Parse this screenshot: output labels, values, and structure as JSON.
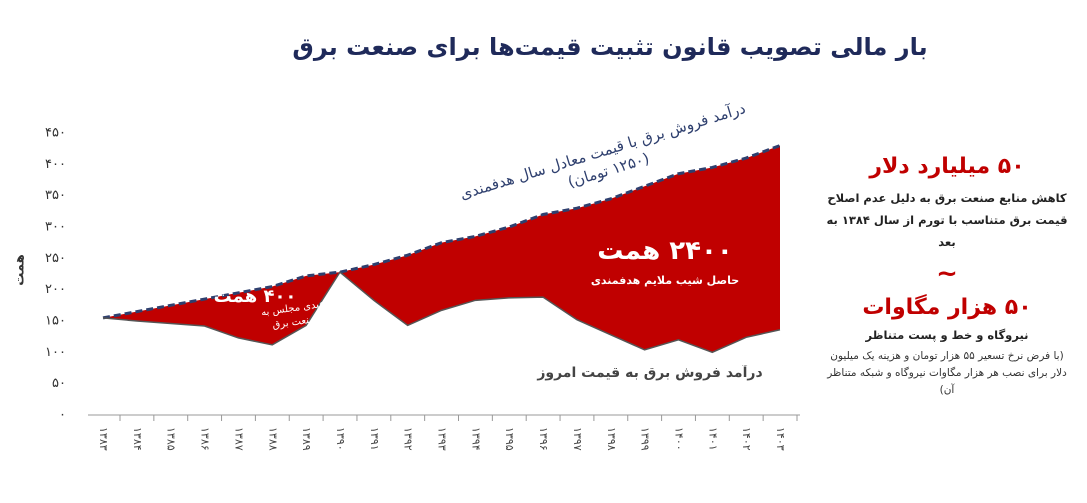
{
  "chart_data": {
    "type": "area_between",
    "title": "بار مالی تصویب قانون تثبیت قیمت‌ها برای صنعت برق",
    "y_label": "همت",
    "categories": [
      "۱۳۸۳",
      "۱۳۸۴",
      "۱۳۸۵",
      "۱۳۸۶",
      "۱۳۸۷",
      "۱۳۸۸",
      "۱۳۸۹",
      "۱۳۹۰",
      "۱۳۹۱",
      "۱۳۹۲",
      "۱۳۹۳",
      "۱۳۹۴",
      "۱۳۹۵",
      "۱۳۹۶",
      "۱۳۹۷",
      "۱۳۹۸",
      "۱۳۹۹",
      "۱۴۰۰",
      "۱۴۰۱",
      "۱۴۰۲",
      "۱۴۰۳"
    ],
    "series": [
      {
        "name": "درآمد فروش برق با قیمت معادل سال هدفمندی (۱۲۵۰ تومان)",
        "color": "#2e3f6e",
        "values": [
          155,
          165,
          175,
          185,
          195,
          205,
          222,
          228,
          240,
          255,
          275,
          285,
          300,
          320,
          330,
          345,
          365,
          385,
          395,
          410,
          430
        ]
      },
      {
        "name": "درآمد فروش برق به قیمت امروز",
        "color": "#555555",
        "values": [
          155,
          150,
          146,
          142,
          123,
          112,
          143,
          228,
          183,
          143,
          167,
          183,
          187,
          188,
          152,
          128,
          104,
          120,
          100,
          124,
          136
        ]
      }
    ],
    "fill_color": "#c00000",
    "ylim": [
      0,
      450
    ],
    "yticks": [
      {
        "value": 0,
        "label": "۰"
      },
      {
        "value": 50,
        "label": "۵۰"
      },
      {
        "value": 100,
        "label": "۱۰۰"
      },
      {
        "value": 150,
        "label": "۱۵۰"
      },
      {
        "value": 200,
        "label": "۲۰۰"
      },
      {
        "value": 250,
        "label": "۲۵۰"
      },
      {
        "value": 300,
        "label": "۳۰۰"
      },
      {
        "value": 350,
        "label": "۳۵۰"
      },
      {
        "value": 400,
        "label": "۴۰۰"
      },
      {
        "value": 450,
        "label": "۴۵۰"
      }
    ],
    "grid": false,
    "annotations": [
      {
        "title": "۲۴۰۰ همت",
        "text": "حاصل شیب ملایم هدفمندی"
      },
      {
        "title": "۴۰۰ همت",
        "text": "عیدی مجلس به صنعت برق"
      }
    ]
  },
  "panel": {
    "cost": "۵۰ میلیارد دلار",
    "cost_text": "کاهش منابع صنعت برق به دلیل عدم اصلاح قیمت برق متناسب با تورم از سال ۱۳۸۴ به بعد",
    "approx": "~",
    "capacity": "۵۰ هزار مگاوات",
    "capacity_text": "نیروگاه و خط و پست متناظر",
    "note": "(با فرض نرخ تسعیر ۵۵ هزار تومان و هزینه یک میلیون دلار برای نصب هر هزار مگاوات نیروگاه و شبکه متناظر آن)"
  }
}
